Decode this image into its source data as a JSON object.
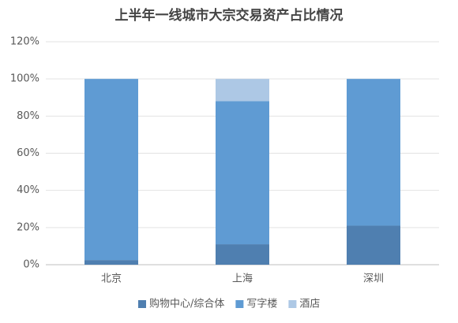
{
  "chart_data": {
    "type": "stacked_bar",
    "title": "上半年一线城市大宗交易资产占比情况",
    "categories": [
      "北京",
      "上海",
      "深圳"
    ],
    "series": [
      {
        "name": "购物中心/综合体",
        "color": "#4f7fb0",
        "values": [
          2.5,
          11,
          21
        ]
      },
      {
        "name": "写字楼",
        "color": "#5f9bd3",
        "values": [
          97.5,
          77,
          79
        ]
      },
      {
        "name": "酒店",
        "color": "#adc8e5",
        "values": [
          0,
          12,
          0
        ]
      }
    ],
    "ylim": [
      0,
      120
    ],
    "yticks": [
      {
        "value": 0,
        "label": "0%"
      },
      {
        "value": 20,
        "label": "20%"
      },
      {
        "value": 40,
        "label": "40%"
      },
      {
        "value": 60,
        "label": "60%"
      },
      {
        "value": 80,
        "label": "80%"
      },
      {
        "value": 100,
        "label": "100%"
      },
      {
        "value": 120,
        "label": "120%"
      }
    ],
    "grid": true,
    "legend": "bottom"
  }
}
